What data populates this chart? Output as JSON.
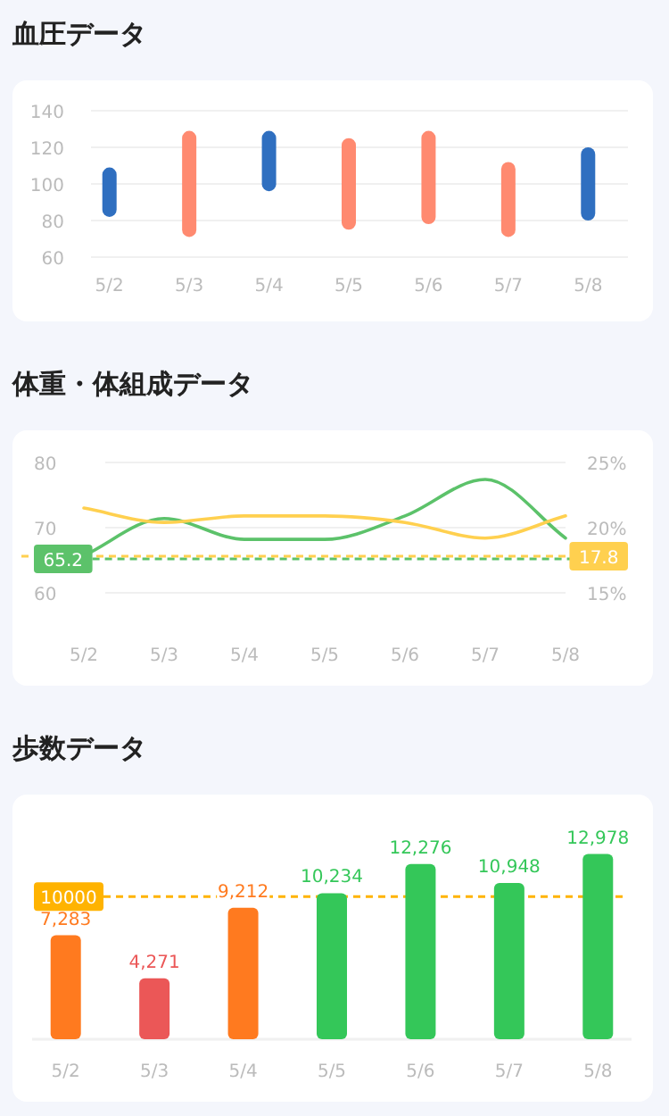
{
  "chart_data": [
    {
      "type": "bar",
      "title": "血圧データ",
      "categories": [
        "5/2",
        "5/3",
        "5/4",
        "5/5",
        "5/6",
        "5/7",
        "5/8"
      ],
      "values": [
        27,
        58,
        33,
        50,
        51,
        41,
        40
      ],
      "base": [
        82,
        71,
        96,
        75,
        78,
        71,
        80
      ],
      "colors": [
        "#2f6fc0",
        "#ff8a70",
        "#2f6fc0",
        "#ff8a70",
        "#ff8a70",
        "#ff8a70",
        "#2f6fc0"
      ],
      "ylim": [
        60,
        140
      ],
      "yticks": [
        60,
        80,
        100,
        120,
        140
      ],
      "grid": "y"
    },
    {
      "type": "line",
      "title": "体重・体組成データ",
      "categories": [
        "5/2",
        "5/3",
        "5/4",
        "5/5",
        "5/6",
        "5/7",
        "5/8"
      ],
      "series": [
        {
          "color": "#5cc26a",
          "values": [
            65.7,
            71.4,
            68.2,
            68.2,
            71.8,
            77.4,
            68.4
          ]
        },
        {
          "color": "#ffd04f",
          "axis": "y2",
          "values": [
            21.5,
            20.4,
            20.9,
            20.9,
            20.4,
            19.2,
            20.9
          ]
        }
      ],
      "ylim": [
        60,
        80
      ],
      "yticks": [
        60,
        70,
        80
      ],
      "y2lim": [
        15,
        25
      ],
      "y2ticks": [
        {
          "value": 15,
          "label": "15%"
        },
        {
          "value": 20,
          "label": "20%"
        },
        {
          "value": 25,
          "label": "25%"
        }
      ],
      "grid": "y",
      "ref_lines": [
        {
          "axis": "y",
          "value": 65.2,
          "label": "65.2",
          "color": "#5cc26a",
          "line_style": "dashed"
        },
        {
          "axis": "y2",
          "value": 17.8,
          "label": "17.8",
          "color": "#ffd04f",
          "line_style": "dashed"
        }
      ]
    },
    {
      "type": "bar",
      "title": "歩数データ",
      "categories": [
        "5/2",
        "5/3",
        "5/4",
        "5/5",
        "5/6",
        "5/7",
        "5/8"
      ],
      "values": [
        7283,
        4271,
        9212,
        10234,
        12276,
        10948,
        12978
      ],
      "colors": [
        "#ff7a1f",
        "#eb5757",
        "#ff7a1f",
        "#34c759",
        "#34c759",
        "#34c759",
        "#34c759"
      ],
      "value_labels": [
        "7,283",
        "4,271",
        "9,212",
        "10,234",
        "12,276",
        "10,948",
        "12,978"
      ],
      "ref_lines": [
        {
          "axis": "y",
          "value": 10000,
          "label": "10000",
          "color": "#ffb300",
          "line_style": "dashed"
        }
      ]
    }
  ]
}
